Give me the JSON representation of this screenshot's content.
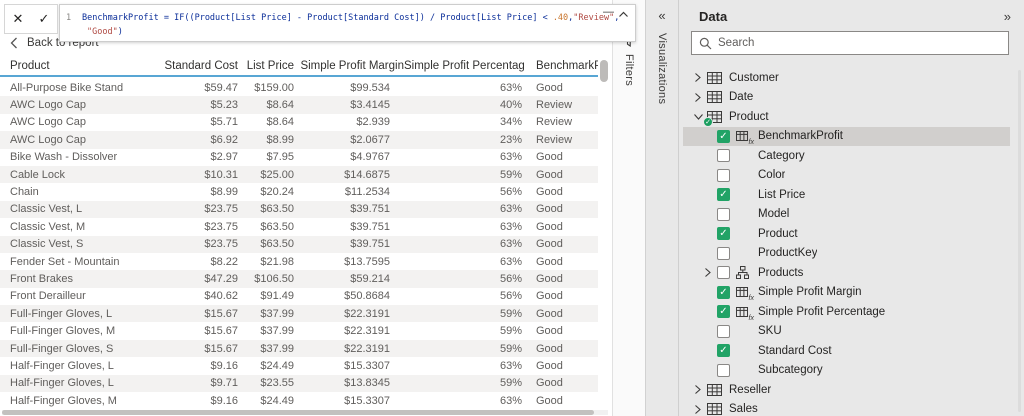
{
  "formula_bar": {
    "line_number": "1",
    "tokens": {
      "main": "BenchmarkProfit = IF((Product[List Price] - Product[Standard Cost]) / Product[List Price] < ",
      "number": ".40",
      "comma1": ",",
      "string1": "\"Review\"",
      "comma2": ",",
      "string2": "\"Good\"",
      "close": ")"
    },
    "cancel_icon": "✕",
    "commit_icon": "✓",
    "minimize_icon": "—"
  },
  "nav": {
    "back_label": "Back to report"
  },
  "table": {
    "headers": [
      "Product",
      "Standard Cost",
      "List Price",
      "Simple Profit Margin",
      "Simple Profit Percentage",
      "BenchmarkProfit"
    ],
    "rows": [
      [
        "All-Purpose Bike Stand",
        "$59.47",
        "$159.00",
        "$99.534",
        "63%",
        "Good"
      ],
      [
        "AWC Logo Cap",
        "$5.23",
        "$8.64",
        "$3.4145",
        "40%",
        "Review"
      ],
      [
        "AWC Logo Cap",
        "$5.71",
        "$8.64",
        "$2.939",
        "34%",
        "Review"
      ],
      [
        "AWC Logo Cap",
        "$6.92",
        "$8.99",
        "$2.0677",
        "23%",
        "Review"
      ],
      [
        "Bike Wash - Dissolver",
        "$2.97",
        "$7.95",
        "$4.9767",
        "63%",
        "Good"
      ],
      [
        "Cable Lock",
        "$10.31",
        "$25.00",
        "$14.6875",
        "59%",
        "Good"
      ],
      [
        "Chain",
        "$8.99",
        "$20.24",
        "$11.2534",
        "56%",
        "Good"
      ],
      [
        "Classic Vest, L",
        "$23.75",
        "$63.50",
        "$39.751",
        "63%",
        "Good"
      ],
      [
        "Classic Vest, M",
        "$23.75",
        "$63.50",
        "$39.751",
        "63%",
        "Good"
      ],
      [
        "Classic Vest, S",
        "$23.75",
        "$63.50",
        "$39.751",
        "63%",
        "Good"
      ],
      [
        "Fender Set - Mountain",
        "$8.22",
        "$21.98",
        "$13.7595",
        "63%",
        "Good"
      ],
      [
        "Front Brakes",
        "$47.29",
        "$106.50",
        "$59.214",
        "56%",
        "Good"
      ],
      [
        "Front Derailleur",
        "$40.62",
        "$91.49",
        "$50.8684",
        "56%",
        "Good"
      ],
      [
        "Full-Finger Gloves, L",
        "$15.67",
        "$37.99",
        "$22.3191",
        "59%",
        "Good"
      ],
      [
        "Full-Finger Gloves, M",
        "$15.67",
        "$37.99",
        "$22.3191",
        "59%",
        "Good"
      ],
      [
        "Full-Finger Gloves, S",
        "$15.67",
        "$37.99",
        "$22.3191",
        "59%",
        "Good"
      ],
      [
        "Half-Finger Gloves, L",
        "$9.16",
        "$24.49",
        "$15.3307",
        "63%",
        "Good"
      ],
      [
        "Half-Finger Gloves, L",
        "$9.71",
        "$23.55",
        "$13.8345",
        "59%",
        "Good"
      ],
      [
        "Half-Finger Gloves, M",
        "$9.16",
        "$24.49",
        "$15.3307",
        "63%",
        "Good"
      ]
    ]
  },
  "filters_pane": {
    "title": "Filters"
  },
  "visualizations_pane": {
    "title": "Visualizations",
    "expand_icon": "«"
  },
  "data_pane": {
    "title": "Data",
    "collapse_icon": "»",
    "search_placeholder": "Search",
    "tree": [
      {
        "label": "Customer",
        "level": 0,
        "type": "table",
        "expander": "collapsed"
      },
      {
        "label": "Date",
        "level": 0,
        "type": "table",
        "expander": "collapsed"
      },
      {
        "label": "Product",
        "level": 0,
        "type": "table",
        "expander": "expanded",
        "badge": true
      },
      {
        "label": "BenchmarkProfit",
        "level": 1,
        "checkbox": "checked",
        "icon": "fx-table",
        "selected": true
      },
      {
        "label": "Category",
        "level": 1,
        "checkbox": "unchecked"
      },
      {
        "label": "Color",
        "level": 1,
        "checkbox": "unchecked"
      },
      {
        "label": "List Price",
        "level": 1,
        "checkbox": "checked"
      },
      {
        "label": "Model",
        "level": 1,
        "checkbox": "unchecked"
      },
      {
        "label": "Product",
        "level": 1,
        "checkbox": "checked"
      },
      {
        "label": "ProductKey",
        "level": 1,
        "checkbox": "unchecked"
      },
      {
        "label": "Products",
        "level": 1,
        "checkbox": "unchecked",
        "icon": "hierarchy",
        "expander": "collapsed"
      },
      {
        "label": "Simple Profit Margin",
        "level": 1,
        "checkbox": "checked",
        "icon": "fx-table"
      },
      {
        "label": "Simple Profit Percentage",
        "level": 1,
        "checkbox": "checked",
        "icon": "fx-table"
      },
      {
        "label": "SKU",
        "level": 1,
        "checkbox": "unchecked"
      },
      {
        "label": "Standard Cost",
        "level": 1,
        "checkbox": "checked"
      },
      {
        "label": "Subcategory",
        "level": 1,
        "checkbox": "unchecked"
      },
      {
        "label": "Reseller",
        "level": 0,
        "type": "table",
        "expander": "collapsed"
      },
      {
        "label": "Sales",
        "level": 0,
        "type": "table",
        "expander": "collapsed"
      }
    ]
  },
  "colors": {
    "accent_green": "#21A366",
    "header_underline": "#58A6D4",
    "selected_row": "#D1CFCD",
    "formula_default": "#0B2E99",
    "formula_string": "#B04A43",
    "formula_number": "#C9752C"
  }
}
